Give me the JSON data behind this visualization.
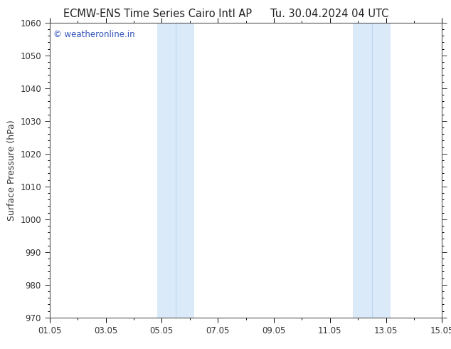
{
  "title_left": "ECMW-ENS Time Series Cairo Intl AP",
  "title_right": "Tu. 30.04.2024 04 UTC",
  "ylabel": "Surface Pressure (hPa)",
  "ylim": [
    970,
    1060
  ],
  "yticks": [
    970,
    980,
    990,
    1000,
    1010,
    1020,
    1030,
    1040,
    1050,
    1060
  ],
  "xlim": [
    0,
    14
  ],
  "xtick_positions": [
    0,
    2,
    4,
    6,
    8,
    10,
    12,
    14
  ],
  "xtick_labels": [
    "01.05",
    "03.05",
    "05.05",
    "07.05",
    "09.05",
    "11.05",
    "13.05",
    "15.05"
  ],
  "shaded_bands": [
    {
      "x_start": 3.83,
      "x_end": 4.5
    },
    {
      "x_start": 4.5,
      "x_end": 5.17
    },
    {
      "x_start": 10.83,
      "x_end": 11.5
    },
    {
      "x_start": 11.5,
      "x_end": 12.17
    }
  ],
  "shaded_color": "#daeaf8",
  "background_color": "#ffffff",
  "plot_bg_color": "#ffffff",
  "watermark_text": "© weatheronline.in",
  "watermark_color": "#3355bb",
  "title_fontsize": 10.5,
  "axis_label_fontsize": 9,
  "tick_fontsize": 8.5,
  "watermark_fontsize": 8.5,
  "border_color": "#555555",
  "tick_color": "#333333"
}
